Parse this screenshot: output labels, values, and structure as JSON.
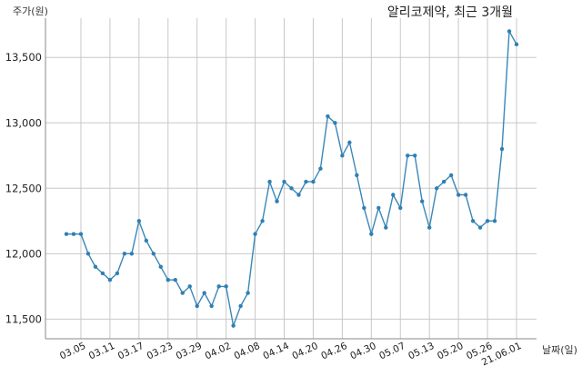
{
  "chart_data": {
    "type": "line",
    "title": "알리코제약, 최근 3개월",
    "ylabel": "주가(원)",
    "xlabel": "날짜(일)",
    "ylim": [
      11350,
      13800
    ],
    "yticks": [
      11500,
      12000,
      12500,
      13000,
      13500
    ],
    "ytick_labels": [
      "11,500",
      "12,000",
      "12,500",
      "13,000",
      "13,500"
    ],
    "xtick_labels": [
      "03.05",
      "03.11",
      "03.17",
      "03.23",
      "03.29",
      "04.02",
      "04.08",
      "04.14",
      "04.20",
      "04.26",
      "04.30",
      "05.07",
      "05.13",
      "05.20",
      "05.26",
      "21.06.01"
    ],
    "xtick_positions": [
      2,
      6,
      10,
      14,
      18,
      22,
      26,
      30,
      34,
      38,
      42,
      46,
      50,
      54,
      58,
      62
    ],
    "grid": true,
    "color": "#3a87b8",
    "values": [
      12150,
      12150,
      12150,
      12000,
      11900,
      11850,
      11800,
      11850,
      12000,
      12000,
      12250,
      12100,
      12000,
      11900,
      11800,
      11800,
      11700,
      11750,
      11600,
      11700,
      11600,
      11750,
      11750,
      11450,
      11600,
      11700,
      12150,
      12250,
      12550,
      12400,
      12550,
      12500,
      12450,
      12550,
      12550,
      12650,
      13050,
      13000,
      12750,
      12850,
      12600,
      12350,
      12150,
      12350,
      12200,
      12450,
      12350,
      12750,
      12750,
      12400,
      12200,
      12500,
      12550,
      12600,
      12450,
      12450,
      12250,
      12200,
      12250,
      12250,
      12800,
      13700,
      13600
    ]
  }
}
